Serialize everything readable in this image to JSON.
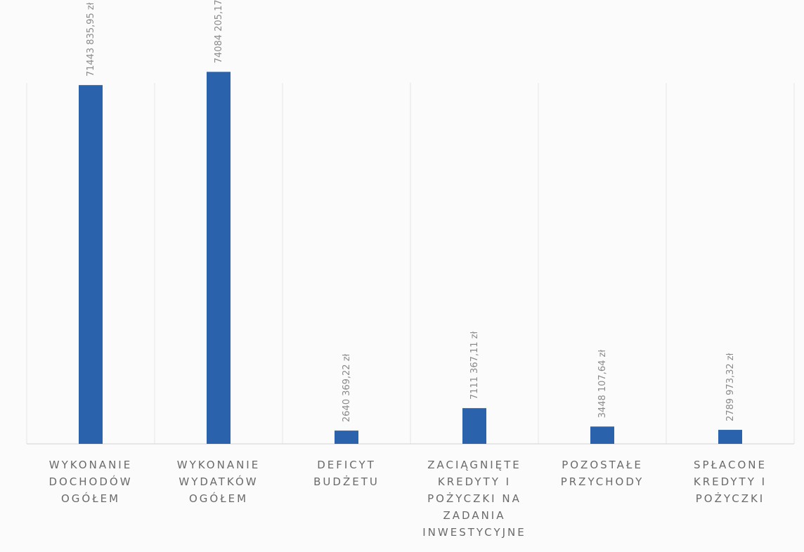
{
  "chart_data": {
    "type": "bar",
    "categories": [
      [
        "WYKONANIE",
        "DOCHODÓW",
        "OGÓŁEM"
      ],
      [
        "WYKONANIE",
        "WYDATKÓW",
        "OGÓŁEM"
      ],
      [
        "DEFICYT",
        "BUDŻETU"
      ],
      [
        "ZACIĄGNIĘTE",
        "KREDYTY I",
        "POŻYCZKI NA",
        "ZADANIA",
        "INWESTYCYJNE"
      ],
      [
        "POZOSTAŁE",
        "PRZYCHODY"
      ],
      [
        "SPŁACONE",
        "KREDYTY I",
        "POŻYCZKI"
      ]
    ],
    "values": [
      71443835.95,
      74084205.17,
      2640369.22,
      7111367.11,
      3448107.64,
      2789973.32
    ],
    "labels": [
      "71443 835,95 zł",
      "74084 205,17 zł",
      "2640 369,22 zł",
      "7111 367,11 zł",
      "3448 107,64 zł",
      "2789 973,32 zł"
    ],
    "title": "",
    "xlabel": "",
    "ylabel": "",
    "ylim": [
      0,
      80000000
    ],
    "grid": "vertical",
    "legend": "none",
    "bar_color": "#2a63ab"
  }
}
